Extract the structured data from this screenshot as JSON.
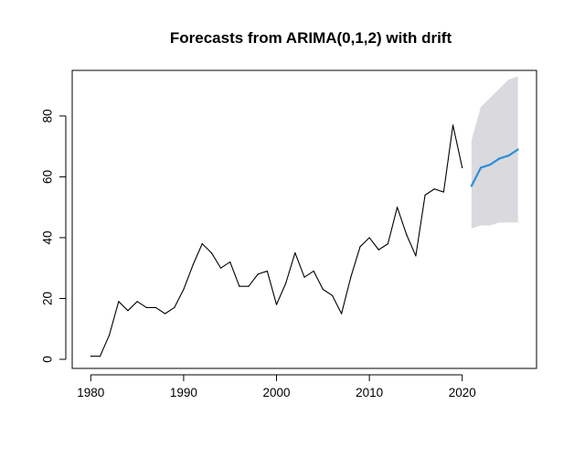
{
  "chart_data": {
    "type": "line",
    "title": "Forecasts from ARIMA(0,1,2) with drift",
    "xlabel": "",
    "ylabel": "",
    "xlim": [
      1978,
      2028
    ],
    "ylim": [
      -3,
      95
    ],
    "x_ticks": [
      1980,
      1990,
      2000,
      2010,
      2020
    ],
    "y_ticks": [
      0,
      20,
      40,
      60,
      80
    ],
    "grid": false,
    "legend": "none",
    "colors": {
      "observed": "#000000",
      "forecast": "#2b8fd8",
      "interval": "#d9d9de"
    },
    "observed": {
      "x": [
        1980,
        1981,
        1982,
        1983,
        1984,
        1985,
        1986,
        1987,
        1988,
        1989,
        1990,
        1991,
        1992,
        1993,
        1994,
        1995,
        1996,
        1997,
        1998,
        1999,
        2000,
        2001,
        2002,
        2003,
        2004,
        2005,
        2006,
        2007,
        2008,
        2009,
        2010,
        2011,
        2012,
        2013,
        2014,
        2015,
        2016,
        2017,
        2018,
        2019,
        2020
      ],
      "y": [
        1,
        1,
        8,
        19,
        16,
        19,
        17,
        17,
        15,
        17,
        23,
        31,
        38,
        35,
        30,
        32,
        24,
        24,
        28,
        29,
        18,
        25,
        35,
        27,
        29,
        23,
        21,
        15,
        27,
        37,
        40,
        36,
        38,
        50,
        41,
        34,
        54,
        56,
        55,
        77,
        63
      ]
    },
    "forecast": {
      "x": [
        2021,
        2022,
        2023,
        2024,
        2025,
        2026
      ],
      "mean": [
        57,
        63,
        64,
        66,
        67,
        69
      ],
      "lower": [
        43,
        44,
        44,
        45,
        45,
        45
      ],
      "upper": [
        72,
        83,
        86,
        89,
        92,
        93
      ]
    }
  }
}
